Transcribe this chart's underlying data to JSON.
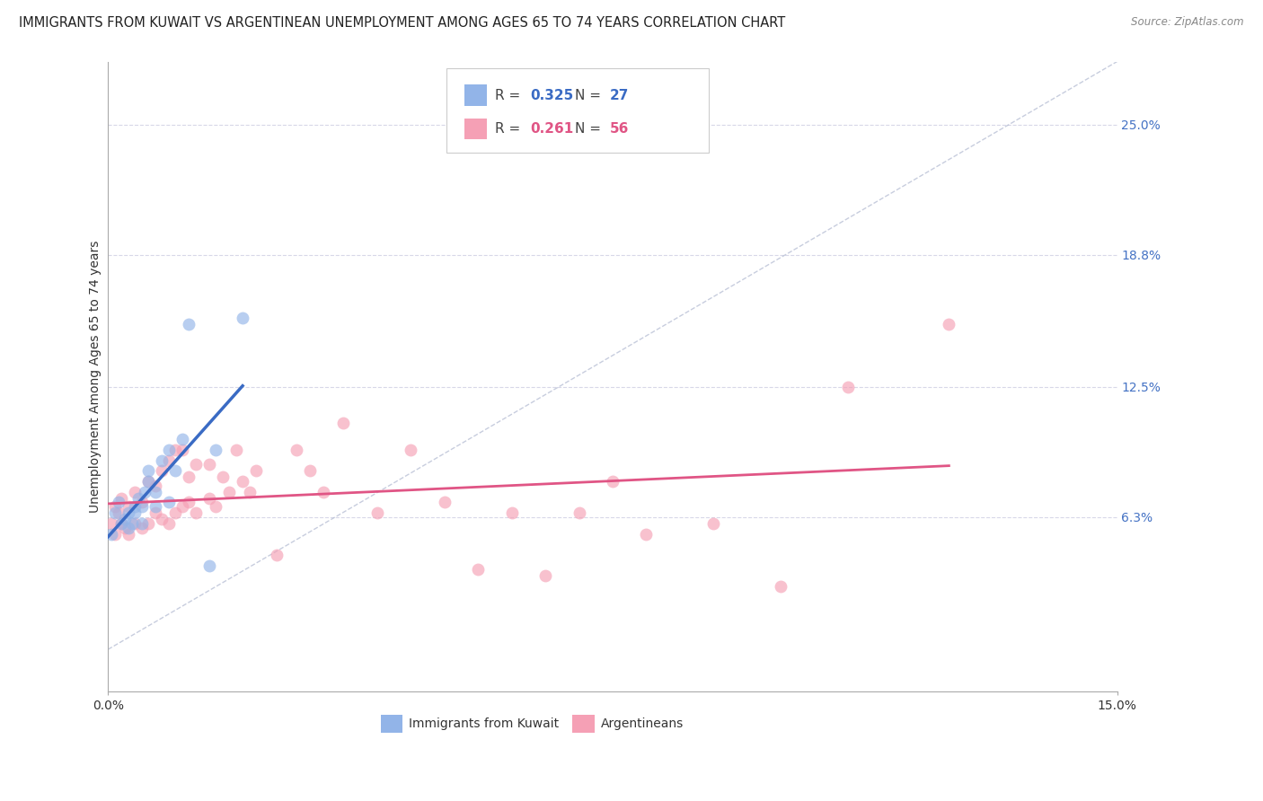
{
  "title": "IMMIGRANTS FROM KUWAIT VS ARGENTINEAN UNEMPLOYMENT AMONG AGES 65 TO 74 YEARS CORRELATION CHART",
  "source": "Source: ZipAtlas.com",
  "ylabel": "Unemployment Among Ages 65 to 74 years",
  "xmin": 0.0,
  "xmax": 0.15,
  "yticks": [
    0.063,
    0.125,
    0.188,
    0.25
  ],
  "ytick_labels": [
    "6.3%",
    "12.5%",
    "18.8%",
    "25.0%"
  ],
  "series1_name": "Immigrants from Kuwait",
  "series1_color": "#92b4e8",
  "series1_R": "0.325",
  "series1_N": "27",
  "series1_x": [
    0.0005,
    0.001,
    0.0015,
    0.002,
    0.0025,
    0.003,
    0.003,
    0.0035,
    0.004,
    0.004,
    0.0045,
    0.005,
    0.005,
    0.0055,
    0.006,
    0.006,
    0.007,
    0.007,
    0.008,
    0.009,
    0.009,
    0.01,
    0.011,
    0.012,
    0.015,
    0.016,
    0.02
  ],
  "series1_y": [
    0.055,
    0.065,
    0.07,
    0.06,
    0.062,
    0.058,
    0.065,
    0.06,
    0.065,
    0.068,
    0.072,
    0.06,
    0.068,
    0.075,
    0.08,
    0.085,
    0.068,
    0.075,
    0.09,
    0.07,
    0.095,
    0.085,
    0.1,
    0.155,
    0.04,
    0.095,
    0.158
  ],
  "series2_name": "Argentineans",
  "series2_color": "#f5a0b5",
  "series2_R": "0.261",
  "series2_N": "56",
  "series2_x": [
    0.0005,
    0.001,
    0.001,
    0.0015,
    0.002,
    0.002,
    0.0025,
    0.003,
    0.003,
    0.004,
    0.004,
    0.005,
    0.005,
    0.006,
    0.006,
    0.007,
    0.007,
    0.008,
    0.008,
    0.009,
    0.009,
    0.01,
    0.01,
    0.011,
    0.011,
    0.012,
    0.012,
    0.013,
    0.013,
    0.015,
    0.015,
    0.016,
    0.017,
    0.018,
    0.019,
    0.02,
    0.021,
    0.022,
    0.025,
    0.028,
    0.03,
    0.032,
    0.035,
    0.04,
    0.045,
    0.05,
    0.055,
    0.06,
    0.065,
    0.07,
    0.075,
    0.08,
    0.09,
    0.1,
    0.11,
    0.125
  ],
  "series2_y": [
    0.06,
    0.055,
    0.068,
    0.065,
    0.06,
    0.072,
    0.058,
    0.055,
    0.068,
    0.06,
    0.075,
    0.058,
    0.07,
    0.06,
    0.08,
    0.065,
    0.078,
    0.062,
    0.085,
    0.06,
    0.09,
    0.065,
    0.095,
    0.068,
    0.095,
    0.07,
    0.082,
    0.065,
    0.088,
    0.072,
    0.088,
    0.068,
    0.082,
    0.075,
    0.095,
    0.08,
    0.075,
    0.085,
    0.045,
    0.095,
    0.085,
    0.075,
    0.108,
    0.065,
    0.095,
    0.07,
    0.038,
    0.065,
    0.035,
    0.065,
    0.08,
    0.055,
    0.06,
    0.03,
    0.125,
    0.155
  ],
  "trend1_color": "#3a6bc4",
  "trend2_color": "#e05585",
  "diag_color": "#b0b8d0",
  "background_color": "#ffffff",
  "grid_color": "#d8d8e8",
  "title_fontsize": 10.5,
  "axis_label_fontsize": 10,
  "tick_fontsize": 10,
  "right_tick_color": "#4472c4",
  "marker_size": 100
}
